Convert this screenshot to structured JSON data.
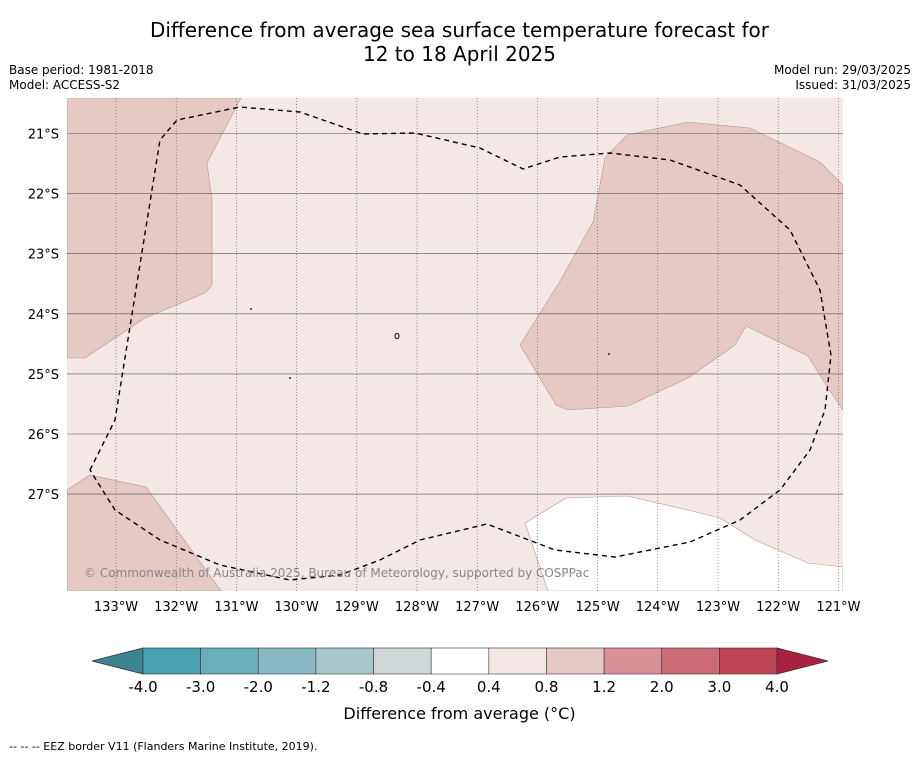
{
  "title": {
    "line1": "Difference from average sea surface temperature forecast for",
    "line2": "12 to 18 April 2025"
  },
  "meta_left": {
    "base_period": "Base period: 1981-2018",
    "model": "Model: ACCESS-S2"
  },
  "meta_right": {
    "model_run": "Model run: 29/03/2025",
    "issued": "Issued: 31/03/2025"
  },
  "map": {
    "copyright": "© Commonwealth of Australia 2025, Bureau of Meteorology, supported by COSPPac",
    "lat_labels": [
      "21°S",
      "22°S",
      "23°S",
      "24°S",
      "25°S",
      "26°S",
      "27°S"
    ],
    "lon_labels": [
      "133°W",
      "132°W",
      "131°W",
      "130°W",
      "129°W",
      "128°W",
      "127°W",
      "126°W",
      "125°W",
      "124°W",
      "123°W",
      "122°W",
      "121°W"
    ],
    "boundary_style": "dashed",
    "colors": {
      "band_0_4_to_0_8": "#f4e8e7",
      "band_0_8_to_1_2": "#e6c8c4",
      "band_neg0_4_to_0_4": "#ffffff",
      "gridline": "#555555"
    }
  },
  "colorbar": {
    "ticks": [
      "-4.0",
      "-3.0",
      "-2.0",
      "-1.2",
      "-0.8",
      "-0.4",
      "0.4",
      "0.8",
      "1.2",
      "2.0",
      "3.0",
      "4.0"
    ],
    "colors": [
      "#49a0b0",
      "#6aaebb",
      "#89b8c2",
      "#a8c7cb",
      "#cfd7d8",
      "#ffffff",
      "#f4e8e7",
      "#e6c8c4",
      "#d99199",
      "#cc6b74",
      "#bf4555"
    ],
    "under_color": "#3c8490",
    "over_color": "#aa2040",
    "label": "Difference from average (",
    "unit": "°C",
    "label_end": ")"
  },
  "footnote": "--  --  -- EEZ border V11 (Flanders Marine Institute, 2019)."
}
